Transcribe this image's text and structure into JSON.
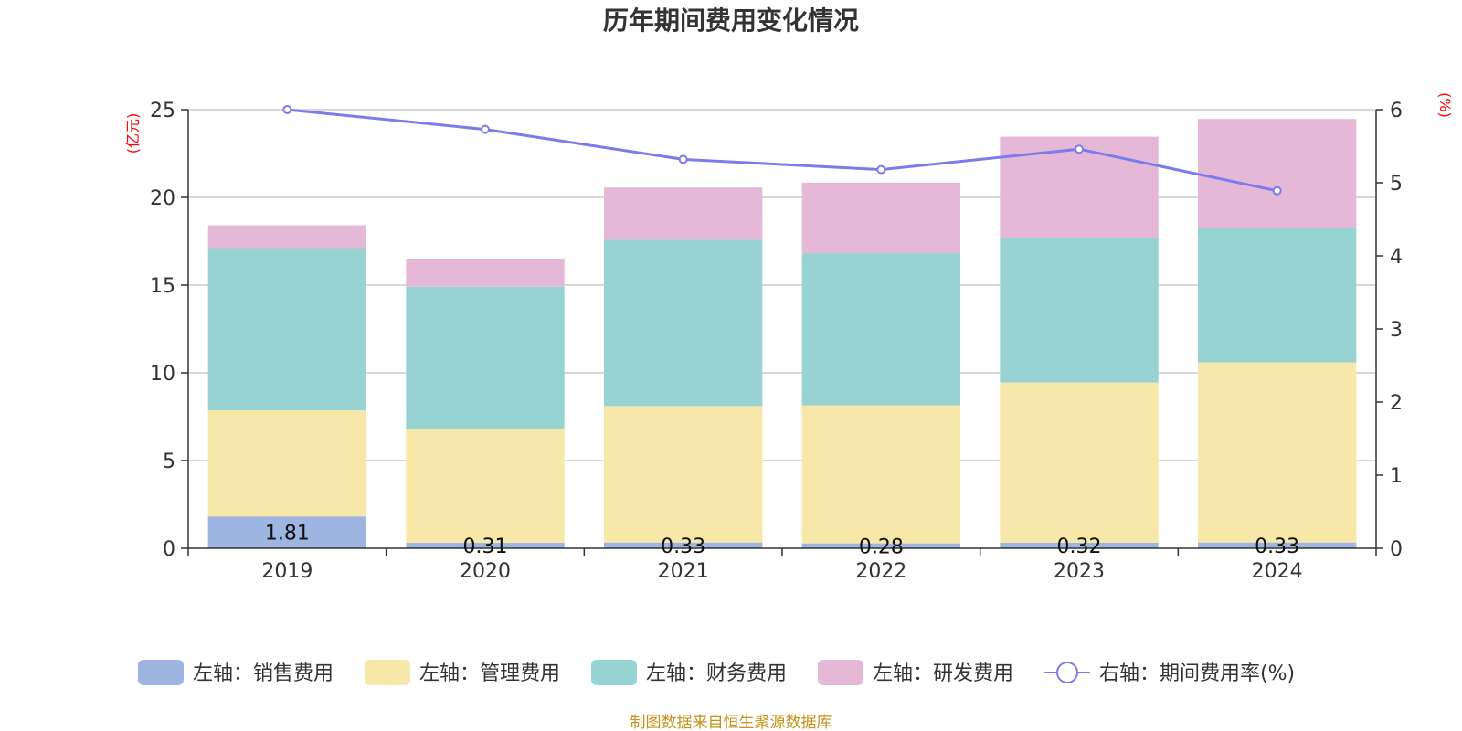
{
  "chart_data": {
    "type": "bar",
    "title": "历年期间费用变化情况",
    "categories": [
      "2019",
      "2020",
      "2021",
      "2022",
      "2023",
      "2024"
    ],
    "left_axis": {
      "unit": "(亿元)",
      "ylim": [
        0,
        25
      ],
      "ticks": [
        "0",
        "5",
        "10",
        "15",
        "20",
        "25"
      ]
    },
    "right_axis": {
      "unit": "(%)",
      "ylim": [
        0,
        6
      ],
      "ticks": [
        "0",
        "1",
        "2",
        "3",
        "4",
        "5",
        "6"
      ]
    },
    "series": [
      {
        "name": "左轴：销售费用",
        "type": "bar",
        "axis": "left",
        "color": "#9db5e0",
        "values": [
          1.81,
          0.31,
          0.33,
          0.28,
          0.32,
          0.33
        ],
        "labels": [
          "1.81",
          "0.31",
          "0.33",
          "0.28",
          "0.32",
          "0.33"
        ]
      },
      {
        "name": "左轴：管理费用",
        "type": "bar",
        "axis": "left",
        "color": "#f7e7a8",
        "values": [
          6.05,
          6.5,
          7.78,
          7.87,
          9.13,
          10.27
        ]
      },
      {
        "name": "左轴：财务费用",
        "type": "bar",
        "axis": "left",
        "color": "#97d3d3",
        "values": [
          9.25,
          8.1,
          9.48,
          8.67,
          8.22,
          7.65
        ]
      },
      {
        "name": "左轴：研发费用",
        "type": "bar",
        "axis": "left",
        "color": "#e6b8d8",
        "values": [
          1.3,
          1.6,
          2.97,
          4.02,
          5.79,
          6.22
        ]
      },
      {
        "name": "右轴：期间费用率(%)",
        "type": "line",
        "axis": "right",
        "color": "#7b7bea",
        "values": [
          6.0,
          5.73,
          5.32,
          5.18,
          5.46,
          4.89
        ]
      }
    ],
    "grid": true,
    "legend_position": "bottom"
  },
  "source": "制图数据来自恒生聚源数据库"
}
